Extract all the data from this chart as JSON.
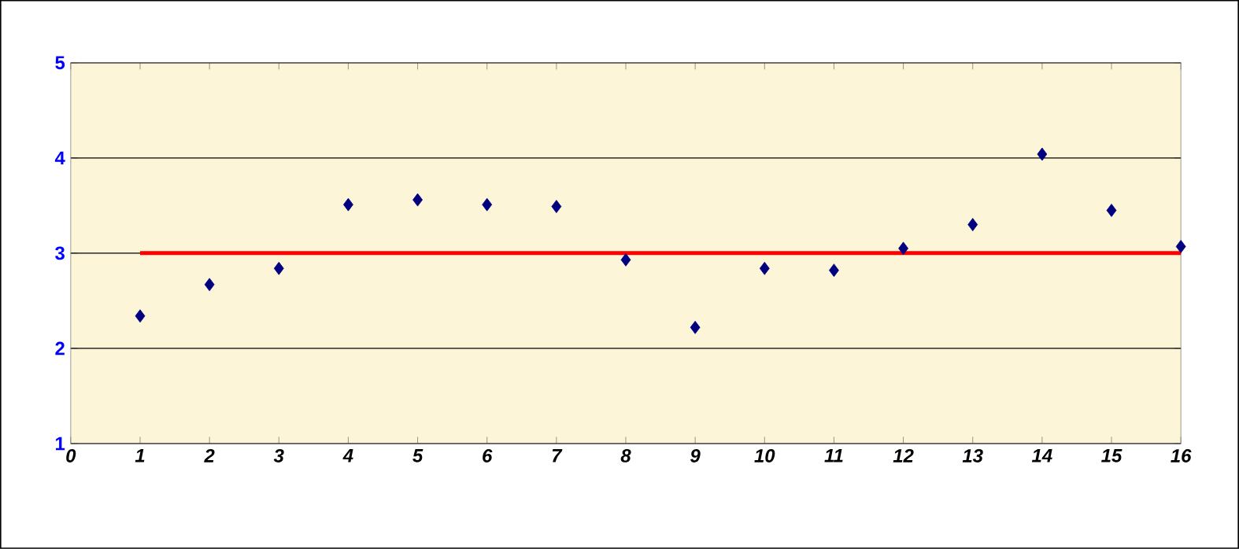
{
  "chart_data": {
    "type": "scatter",
    "x": [
      1,
      2,
      3,
      4,
      5,
      6,
      7,
      8,
      9,
      10,
      11,
      12,
      13,
      14,
      15,
      16
    ],
    "series": [
      {
        "type": "scatter",
        "color": "#000080",
        "marker": "diamond",
        "values": [
          2.34,
          2.67,
          2.84,
          3.51,
          3.56,
          3.51,
          3.49,
          2.93,
          2.22,
          2.84,
          2.82,
          3.05,
          3.3,
          4.04,
          3.45,
          3.07
        ]
      },
      {
        "type": "line",
        "color": "#ff0000",
        "marker": "none",
        "line_style": "solid",
        "x": [
          1,
          16
        ],
        "values": [
          3,
          3
        ]
      }
    ],
    "xlim": [
      0,
      16
    ],
    "xticks": [
      0,
      1,
      2,
      3,
      4,
      5,
      6,
      7,
      8,
      9,
      10,
      11,
      12,
      13,
      14,
      15,
      16
    ],
    "ylim": [
      1,
      5
    ],
    "yticks": [
      1,
      2,
      3,
      4,
      5
    ],
    "grid": "y"
  }
}
